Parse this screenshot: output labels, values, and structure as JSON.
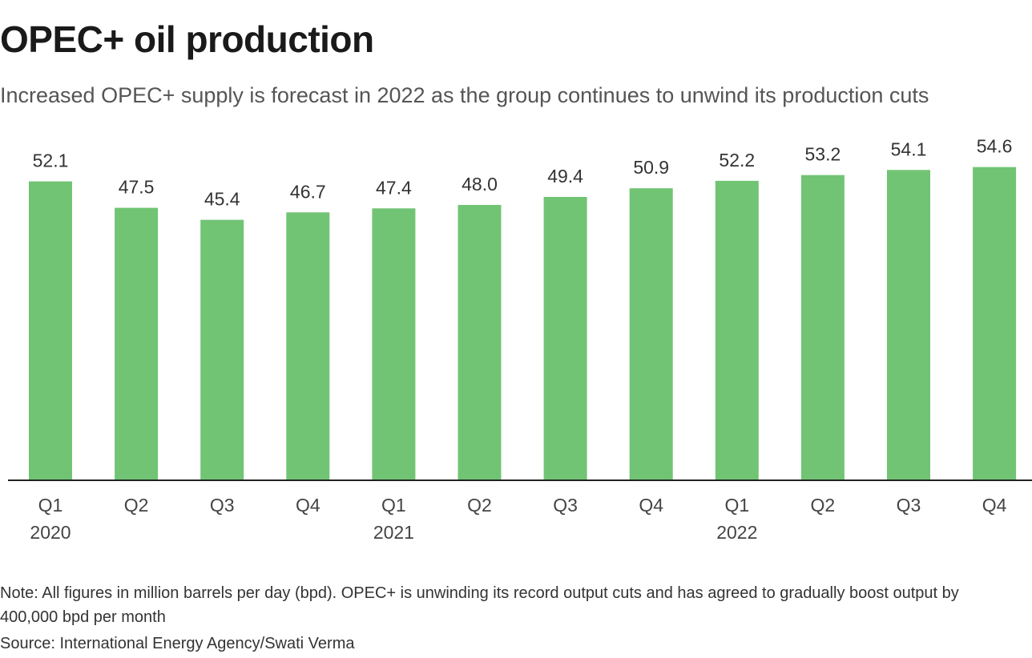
{
  "chart_data": {
    "type": "bar",
    "title": "OPEC+ oil production",
    "subtitle": "Increased OPEC+ supply is forecast in 2022 as the group continues to unwind its production cuts",
    "categories": [
      {
        "quarter": "Q1",
        "year": "2020"
      },
      {
        "quarter": "Q2",
        "year": ""
      },
      {
        "quarter": "Q3",
        "year": ""
      },
      {
        "quarter": "Q4",
        "year": ""
      },
      {
        "quarter": "Q1",
        "year": "2021"
      },
      {
        "quarter": "Q2",
        "year": ""
      },
      {
        "quarter": "Q3",
        "year": ""
      },
      {
        "quarter": "Q4",
        "year": ""
      },
      {
        "quarter": "Q1",
        "year": "2022"
      },
      {
        "quarter": "Q2",
        "year": ""
      },
      {
        "quarter": "Q3",
        "year": ""
      },
      {
        "quarter": "Q4",
        "year": ""
      }
    ],
    "values": [
      52.1,
      47.5,
      45.4,
      46.7,
      47.4,
      48.0,
      49.4,
      50.9,
      52.2,
      53.2,
      54.1,
      54.6
    ],
    "value_labels": [
      "52.1",
      "47.5",
      "45.4",
      "46.7",
      "47.4",
      "48.0",
      "49.4",
      "50.9",
      "52.2",
      "53.2",
      "54.1",
      "54.6"
    ],
    "ylim": [
      0,
      60
    ],
    "xlabel": "",
    "ylabel": "",
    "grid": false,
    "bar_color": "#71c474",
    "axis_color": "#222222"
  },
  "note": "Note: All figures in million barrels per day (bpd). OPEC+ is unwinding its record output cuts and has agreed to gradually boost output by 400,000 bpd per month",
  "source": "Source: International Energy Agency/Swati Verma"
}
